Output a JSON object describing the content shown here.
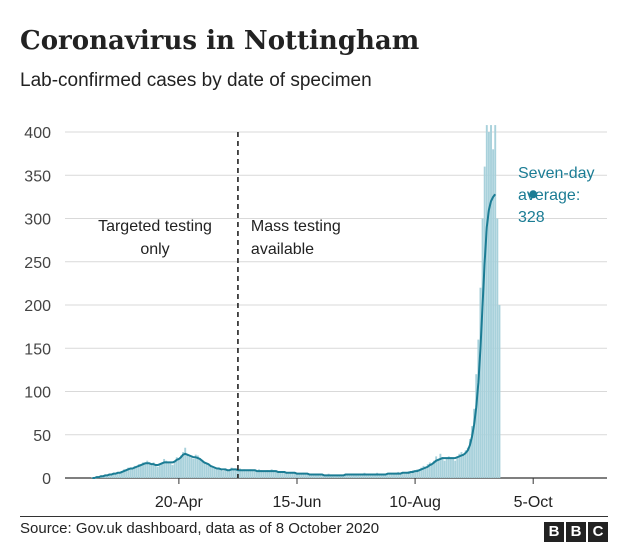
{
  "title": "Coronavirus in Nottingham",
  "subtitle": "Lab-confirmed cases by date of specimen",
  "source": "Source: Gov.uk dashboard, data as of 8 October 2020",
  "logo": [
    "B",
    "B",
    "C"
  ],
  "colors": {
    "bar": "#a8d1db",
    "line": "#1b7c94",
    "grid": "#d9d9d9",
    "text": "#222222",
    "annotation": "#1b7c94"
  },
  "chart_data": {
    "type": "bar",
    "x_start": "2020-02-26",
    "x_end": "2020-11-09",
    "ylim": [
      0,
      400
    ],
    "y_ticks": [
      0,
      50,
      100,
      150,
      200,
      250,
      300,
      350,
      400
    ],
    "x_ticks": [
      {
        "date": "2020-04-20",
        "label": "20-Apr"
      },
      {
        "date": "2020-06-15",
        "label": "15-Jun"
      },
      {
        "date": "2020-08-10",
        "label": "10-Aug"
      },
      {
        "date": "2020-10-05",
        "label": "5-Oct"
      }
    ],
    "divider": {
      "date": "2020-05-18",
      "left_label": [
        "Targeted testing",
        "only"
      ],
      "right_label": [
        "Mass testing",
        "available"
      ]
    },
    "annotation": {
      "date": "2020-10-05",
      "value": 328,
      "lines": [
        "Seven-day",
        "average:",
        "328"
      ]
    },
    "series": [
      {
        "name": "Daily cases",
        "kind": "bars",
        "start": "2020-03-10",
        "values": [
          1,
          1,
          2,
          1,
          3,
          2,
          4,
          3,
          5,
          4,
          6,
          5,
          7,
          6,
          8,
          10,
          9,
          12,
          10,
          11,
          14,
          12,
          16,
          15,
          18,
          17,
          20,
          16,
          15,
          18,
          14,
          13,
          16,
          18,
          22,
          20,
          19,
          17,
          15,
          19,
          24,
          22,
          26,
          30,
          35,
          28,
          25,
          24,
          22,
          27,
          26,
          23,
          20,
          18,
          16,
          15,
          14,
          12,
          11,
          10,
          12,
          9,
          8,
          10,
          9,
          8,
          12,
          10,
          9,
          8,
          11,
          9,
          10,
          8,
          9,
          10,
          9,
          8,
          7,
          10,
          9,
          8,
          7,
          9,
          8,
          10,
          9,
          8,
          7,
          6,
          8,
          7,
          6,
          5,
          6,
          7,
          6,
          5,
          4,
          5,
          6,
          5,
          4,
          5,
          4,
          3,
          4,
          5,
          3,
          4,
          3,
          4,
          5,
          4,
          3,
          2,
          3,
          4,
          3,
          4,
          5,
          4,
          3,
          4,
          5,
          4,
          3,
          4,
          5,
          6,
          4,
          3,
          4,
          5,
          4,
          6,
          5,
          4,
          3,
          4,
          5,
          6,
          4,
          5,
          6,
          7,
          5,
          6,
          5,
          6,
          8,
          7,
          9,
          8,
          10,
          9,
          12,
          14,
          13,
          16,
          18,
          15,
          20,
          25,
          22,
          28,
          24,
          20,
          22,
          25,
          24,
          22,
          20,
          25,
          28,
          30,
          26,
          32,
          35,
          45,
          60,
          80,
          120,
          160,
          220,
          300,
          360,
          410,
          400,
          420,
          380,
          410,
          300,
          200
        ]
      },
      {
        "name": "Seven-day average",
        "kind": "line",
        "start": "2020-03-10",
        "values": [
          0,
          0,
          1,
          1,
          2,
          2,
          3,
          3,
          4,
          4,
          5,
          5,
          6,
          6,
          7,
          8,
          9,
          10,
          11,
          11,
          12,
          13,
          14,
          15,
          16,
          17,
          17,
          17,
          16,
          16,
          15,
          15,
          16,
          17,
          18,
          18,
          18,
          18,
          18,
          19,
          21,
          22,
          24,
          27,
          28,
          27,
          26,
          25,
          24,
          24,
          23,
          22,
          20,
          18,
          17,
          16,
          14,
          13,
          12,
          11,
          11,
          10,
          10,
          10,
          9,
          9,
          10,
          10,
          10,
          9,
          9,
          9,
          9,
          9,
          9,
          9,
          9,
          9,
          8,
          8,
          8,
          8,
          8,
          8,
          8,
          8,
          8,
          8,
          7,
          7,
          7,
          7,
          6,
          6,
          6,
          6,
          6,
          5,
          5,
          5,
          5,
          5,
          5,
          4,
          4,
          4,
          4,
          4,
          4,
          4,
          3,
          3,
          3,
          3,
          3,
          3,
          3,
          3,
          3,
          3,
          4,
          4,
          4,
          4,
          4,
          4,
          4,
          4,
          4,
          4,
          4,
          4,
          4,
          4,
          4,
          4,
          4,
          4,
          4,
          4,
          5,
          5,
          5,
          5,
          5,
          5,
          5,
          6,
          6,
          6,
          6,
          7,
          7,
          8,
          8,
          9,
          10,
          11,
          12,
          13,
          15,
          16,
          18,
          20,
          21,
          22,
          23,
          23,
          23,
          23,
          23,
          23,
          23,
          24,
          25,
          26,
          27,
          29,
          32,
          38,
          48,
          62,
          82,
          110,
          150,
          200,
          250,
          290,
          310,
          320,
          325,
          328
        ]
      }
    ]
  }
}
